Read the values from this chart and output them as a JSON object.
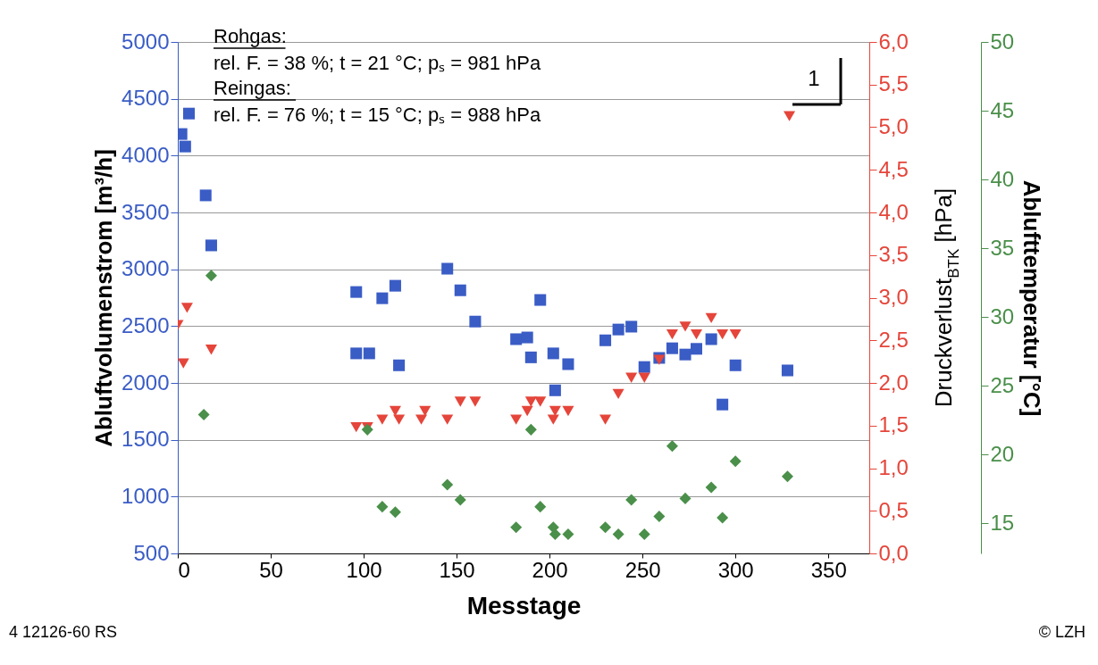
{
  "chart_data": {
    "type": "scatter",
    "xlabel": "Messtage",
    "ylabel": "Abluftvolumenstrom [m³/h]",
    "y2label": "Druckverlust$_{BTK}$ [hPa]",
    "y3label": "Ablufttemperatur [°C]",
    "xlim": [
      0,
      372
    ],
    "xticks": [
      0,
      50,
      100,
      150,
      200,
      250,
      300,
      350
    ],
    "ylim": [
      500,
      5000
    ],
    "yticks": [
      500,
      1000,
      1500,
      2000,
      2500,
      3000,
      3500,
      4000,
      4500,
      5000
    ],
    "y2lim": [
      0,
      6
    ],
    "y2ticks": [
      {
        "value": 0,
        "label": "0,0"
      },
      {
        "value": 0.5,
        "label": "0,5"
      },
      {
        "value": 1,
        "label": "1,0"
      },
      {
        "value": 1.5,
        "label": "1,5"
      },
      {
        "value": 2,
        "label": "2,0"
      },
      {
        "value": 2.5,
        "label": "2,5"
      },
      {
        "value": 3,
        "label": "3,0"
      },
      {
        "value": 3.5,
        "label": "3,5"
      },
      {
        "value": 4,
        "label": "4,0"
      },
      {
        "value": 4.5,
        "label": "4,5"
      },
      {
        "value": 5,
        "label": "5,0"
      },
      {
        "value": 5.5,
        "label": "5,5"
      },
      {
        "value": 6,
        "label": "6,0"
      }
    ],
    "y3lim": [
      12.8,
      50
    ],
    "y3ticks": [
      15,
      20,
      25,
      30,
      35,
      40,
      45,
      50
    ],
    "grid": "y",
    "series": [
      {
        "color": "#3a5cc5",
        "marker": "square",
        "x": [
          2,
          4,
          6,
          15,
          18,
          96,
          96,
          103,
          110,
          117,
          119,
          145,
          152,
          160,
          182,
          188,
          190,
          195,
          202,
          203,
          210,
          230,
          237,
          244,
          251,
          259,
          266,
          273,
          279,
          287,
          293,
          300,
          328
        ],
        "values": [
          4190,
          4080,
          4370,
          3650,
          3210,
          2800,
          2260,
          2260,
          2745,
          2855,
          2155,
          3005,
          2815,
          2540,
          2385,
          2400,
          2225,
          2730,
          2260,
          1935,
          2165,
          2375,
          2470,
          2495,
          2140,
          2220,
          2305,
          2250,
          2300,
          2385,
          1810,
          2155,
          2110
        ]
      },
      {
        "color": "#e5453a",
        "marker": "triangle-down",
        "axis": "y2",
        "x": [
          0,
          3,
          5,
          18,
          96,
          102,
          110,
          117,
          119,
          131,
          133,
          145,
          152,
          160,
          182,
          188,
          190,
          195,
          202,
          203,
          210,
          230,
          237,
          244,
          251,
          259,
          266,
          273,
          279,
          287,
          293,
          300,
          329
        ],
        "values": [
          2.68,
          2.23,
          2.88,
          2.39,
          1.48,
          1.48,
          1.57,
          1.67,
          1.57,
          1.57,
          1.67,
          1.57,
          1.78,
          1.78,
          1.57,
          1.67,
          1.78,
          1.78,
          1.57,
          1.67,
          1.67,
          1.57,
          1.87,
          2.06,
          2.06,
          2.27,
          2.57,
          2.66,
          2.57,
          2.76,
          2.57,
          2.57,
          5.13
        ]
      },
      {
        "color": "#4a8f4a",
        "marker": "diamond",
        "axis": "y3",
        "x": [
          14,
          18,
          102,
          110,
          117,
          145,
          152,
          182,
          190,
          195,
          202,
          203,
          210,
          230,
          237,
          244,
          251,
          259,
          266,
          273,
          287,
          293,
          300,
          328
        ],
        "values": [
          22.9,
          33.0,
          21.8,
          16.2,
          15.8,
          17.8,
          16.7,
          14.7,
          21.8,
          16.2,
          14.7,
          14.2,
          14.2,
          14.7,
          14.2,
          16.7,
          14.2,
          15.5,
          20.6,
          16.8,
          17.6,
          15.4,
          19.5,
          18.4
        ]
      }
    ],
    "annotations": [
      "Rohgas:",
      "rel. F. = 38 %; t = 21 °C; pₛ = 981 hPa",
      "Reingas:",
      "rel. F. = 76 %; t = 15 °C; pₛ = 988 hPa",
      "1",
      "4 12126-60 RS",
      "© LZH"
    ]
  }
}
